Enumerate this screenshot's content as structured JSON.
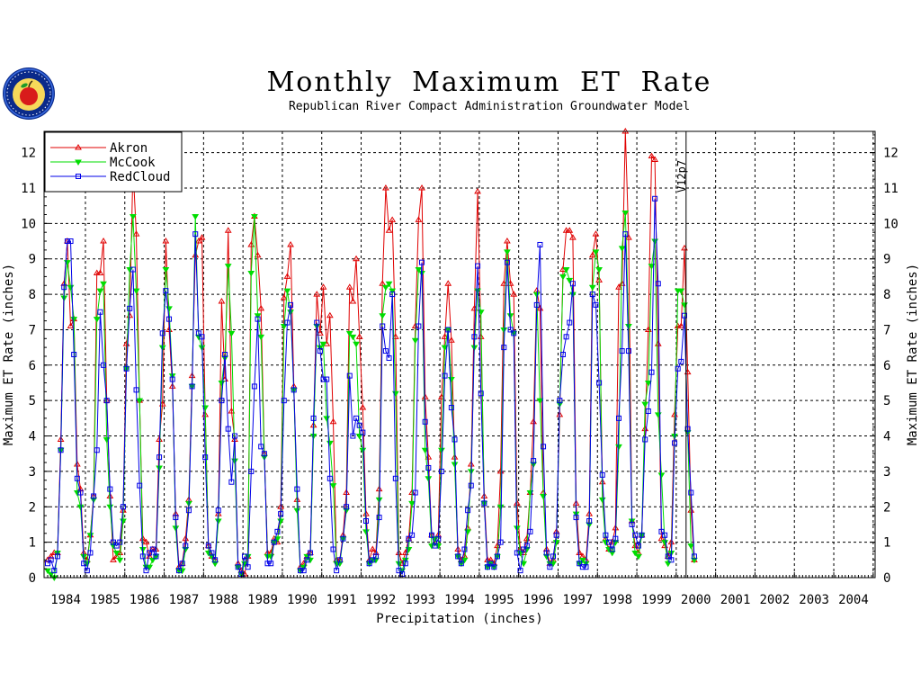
{
  "header": {
    "title": "Monthly Maximum ET Rate",
    "subtitle": "Republican River Compact Administration Groundwater Model"
  },
  "logo": {
    "icon": "apple-seal-icon"
  },
  "chart_data": {
    "type": "line",
    "title": "Monthly Maximum ET Rate",
    "subtitle": "Republican River Compact Administration Groundwater Model",
    "xlabel": "Precipitation (inches)",
    "ylabel": "Maximum ET Rate (inches)",
    "ylim": [
      0,
      12.6
    ],
    "yticks": [
      "0",
      "1",
      "2",
      "3",
      "4",
      "5",
      "6",
      "7",
      "8",
      "9",
      "10",
      "11",
      "12"
    ],
    "x_start": "1983-10",
    "x_end": "2004-09",
    "year_labels": [
      "1984",
      "1985",
      "1986",
      "1987",
      "1988",
      "1989",
      "1990",
      "1991",
      "1992",
      "1993",
      "1994",
      "1995",
      "1996",
      "1997",
      "1998",
      "1999",
      "2000",
      "2001",
      "2002",
      "2003",
      "2004"
    ],
    "grid": true,
    "legend_position": "top-left",
    "annotation": {
      "text": "V12p7",
      "at": "2000-01"
    },
    "series": [
      {
        "name": "Akron",
        "color": "#e00000",
        "marker": "triangle",
        "values": [
          0.5,
          0.6,
          0.7,
          0.7,
          3.9,
          8.3,
          9.5,
          7.1,
          7.3,
          3.2,
          2.5,
          0.7,
          0.5,
          1.2,
          2.3,
          8.6,
          8.6,
          9.5,
          5.0,
          2.3,
          0.5,
          0.6,
          0.7,
          1.9,
          6.6,
          7.4,
          11.6,
          9.7,
          5.0,
          1.1,
          1.0,
          0.6,
          0.8,
          0.8,
          3.9,
          4.9,
          9.5,
          7.0,
          5.4,
          1.8,
          0.3,
          0.4,
          1.1,
          2.2,
          5.7,
          9.1,
          9.5,
          9.6,
          4.6,
          0.9,
          0.6,
          0.5,
          1.8,
          7.8,
          5.6,
          9.8,
          4.7,
          3.9,
          0.4,
          0.2,
          0.1,
          0.6,
          9.4,
          10.2,
          9.1,
          7.6,
          3.5,
          0.7,
          0.7,
          1.1,
          1.0,
          2.0,
          7.9,
          8.5,
          9.4,
          5.4,
          2.2,
          0.3,
          0.4,
          0.6,
          0.7,
          4.3,
          8.0,
          6.9,
          8.2,
          6.6,
          7.4,
          4.4,
          0.5,
          0.5,
          1.2,
          2.4,
          8.2,
          7.8,
          9.0,
          6.8,
          4.8,
          1.8,
          0.5,
          0.8,
          0.7,
          2.5,
          8.3,
          11.0,
          9.8,
          10.1,
          6.8,
          0.7,
          0.4,
          0.7,
          1.1,
          2.4,
          7.1,
          10.1,
          11.0,
          5.1,
          3.4,
          1.2,
          1.0,
          1.2,
          5.1,
          6.8,
          8.3,
          6.7,
          3.4,
          0.8,
          0.5,
          0.6,
          1.4,
          3.2,
          7.6,
          10.9,
          6.8,
          2.3,
          0.5,
          0.5,
          0.4,
          0.9,
          3.0,
          8.3,
          9.5,
          8.3,
          8.0,
          2.1,
          0.8,
          0.7,
          1.1,
          2.4,
          4.4,
          8.1,
          7.6,
          2.4,
          0.8,
          0.4,
          0.5,
          1.3,
          4.6,
          8.7,
          9.8,
          9.8,
          9.6,
          2.1,
          0.7,
          0.6,
          0.5,
          1.8,
          9.1,
          9.7,
          8.4,
          2.7,
          1.1,
          0.8,
          1.0,
          1.4,
          8.2,
          8.3,
          12.6,
          9.6,
          1.6,
          0.9,
          0.7,
          1.2,
          4.2,
          7.0,
          11.9,
          11.8,
          6.6,
          1.1,
          0.9,
          0.6,
          1.0,
          4.6,
          7.1,
          7.1,
          9.3,
          5.8,
          1.9,
          0.5
        ]
      },
      {
        "name": "McCook",
        "color": "#00dd00",
        "marker": "triangle-down",
        "values": [
          0.2,
          0.1,
          0.0,
          0.7,
          3.6,
          7.9,
          8.9,
          8.2,
          7.3,
          2.4,
          2.0,
          0.6,
          0.4,
          1.2,
          2.2,
          7.3,
          8.1,
          8.3,
          3.9,
          2.0,
          0.9,
          0.7,
          0.5,
          1.6,
          5.9,
          8.7,
          10.2,
          8.1,
          5.0,
          0.8,
          0.3,
          0.3,
          0.5,
          0.6,
          3.1,
          6.5,
          8.7,
          7.6,
          5.7,
          1.4,
          0.2,
          0.2,
          0.8,
          2.1,
          5.4,
          10.2,
          6.8,
          6.5,
          4.8,
          0.7,
          0.6,
          0.4,
          1.6,
          5.5,
          6.2,
          8.8,
          6.9,
          3.3,
          0.3,
          0.1,
          0.4,
          0.6,
          8.6,
          10.2,
          7.4,
          6.8,
          3.4,
          0.6,
          0.6,
          1.0,
          1.1,
          1.6,
          7.1,
          8.1,
          7.5,
          5.3,
          1.9,
          0.2,
          0.3,
          0.6,
          0.5,
          4.0,
          7.1,
          6.5,
          6.6,
          4.5,
          3.8,
          2.6,
          0.4,
          0.4,
          1.1,
          1.9,
          6.9,
          6.8,
          6.6,
          4.0,
          3.6,
          1.3,
          0.4,
          0.5,
          0.5,
          2.2,
          7.4,
          8.2,
          8.3,
          8.1,
          5.2,
          0.4,
          0.2,
          0.5,
          0.8,
          2.1,
          6.7,
          8.7,
          8.6,
          3.6,
          2.8,
          0.9,
          1.1,
          0.9,
          3.6,
          6.5,
          7.0,
          5.6,
          3.2,
          0.6,
          0.4,
          0.5,
          1.3,
          3.0,
          6.5,
          8.1,
          7.5,
          2.1,
          0.3,
          0.4,
          0.3,
          0.6,
          2.0,
          7.0,
          9.2,
          7.4,
          6.9,
          1.4,
          0.7,
          0.4,
          0.8,
          2.4,
          3.2,
          8.0,
          5.0,
          2.3,
          0.6,
          0.4,
          0.4,
          1.0,
          4.9,
          8.5,
          8.7,
          8.4,
          8.0,
          1.8,
          0.4,
          0.5,
          0.4,
          1.5,
          8.2,
          9.2,
          8.7,
          2.2,
          1.0,
          0.8,
          0.7,
          1.0,
          3.7,
          9.3,
          10.3,
          7.1,
          1.6,
          0.7,
          0.6,
          1.2,
          4.9,
          5.5,
          8.8,
          9.5,
          4.6,
          2.9,
          1.0,
          0.4,
          0.7,
          4.0,
          8.1,
          8.1,
          7.7,
          4.1,
          0.9,
          0.5
        ]
      },
      {
        "name": "RedCloud",
        "color": "#0000e8",
        "marker": "square",
        "values": [
          0.4,
          0.5,
          0.2,
          0.6,
          3.6,
          8.2,
          9.5,
          9.5,
          6.3,
          2.8,
          2.4,
          0.4,
          0.2,
          0.7,
          2.3,
          3.6,
          7.5,
          6.0,
          5.0,
          2.5,
          1.0,
          0.9,
          1.0,
          2.0,
          5.9,
          7.6,
          8.7,
          5.3,
          2.6,
          0.6,
          0.2,
          0.7,
          0.8,
          0.6,
          3.4,
          6.9,
          8.1,
          7.3,
          5.6,
          1.7,
          0.2,
          0.4,
          0.9,
          1.9,
          5.4,
          9.7,
          6.9,
          6.8,
          3.4,
          0.9,
          0.7,
          0.5,
          1.9,
          5.0,
          6.3,
          4.2,
          2.7,
          4.0,
          0.3,
          0.1,
          0.6,
          0.3,
          3.0,
          5.4,
          7.3,
          3.7,
          3.5,
          0.4,
          0.4,
          1.0,
          1.3,
          1.8,
          5.0,
          7.2,
          7.7,
          5.3,
          2.5,
          0.2,
          0.2,
          0.5,
          0.7,
          4.5,
          7.2,
          6.4,
          5.6,
          5.6,
          2.8,
          0.8,
          0.2,
          0.5,
          1.1,
          2.0,
          5.7,
          4.0,
          4.5,
          4.3,
          4.1,
          1.6,
          0.4,
          0.5,
          0.6,
          1.7,
          7.1,
          6.4,
          6.2,
          8.0,
          2.8,
          0.2,
          0.1,
          0.4,
          1.1,
          1.2,
          2.4,
          7.1,
          8.9,
          4.4,
          3.1,
          1.2,
          0.9,
          1.1,
          3.0,
          5.7,
          7.0,
          4.8,
          3.9,
          0.6,
          0.4,
          0.8,
          1.9,
          2.6,
          6.8,
          8.8,
          5.2,
          2.1,
          0.3,
          0.4,
          0.3,
          0.6,
          1.0,
          6.5,
          8.9,
          7.0,
          6.9,
          0.7,
          0.2,
          0.8,
          0.9,
          1.3,
          3.3,
          7.7,
          9.4,
          3.7,
          0.7,
          0.3,
          0.6,
          1.2,
          5.0,
          6.3,
          6.8,
          7.2,
          8.3,
          1.7,
          0.4,
          0.3,
          0.3,
          1.6,
          8.0,
          7.7,
          5.5,
          2.9,
          1.2,
          1.0,
          0.8,
          1.1,
          4.5,
          6.4,
          9.7,
          6.4,
          1.5,
          1.2,
          0.9,
          1.2,
          3.9,
          4.7,
          5.8,
          10.7,
          8.3,
          1.3,
          1.2,
          0.6,
          0.5,
          3.8,
          5.9,
          6.1,
          7.4,
          4.2,
          2.4,
          0.6
        ]
      }
    ]
  }
}
